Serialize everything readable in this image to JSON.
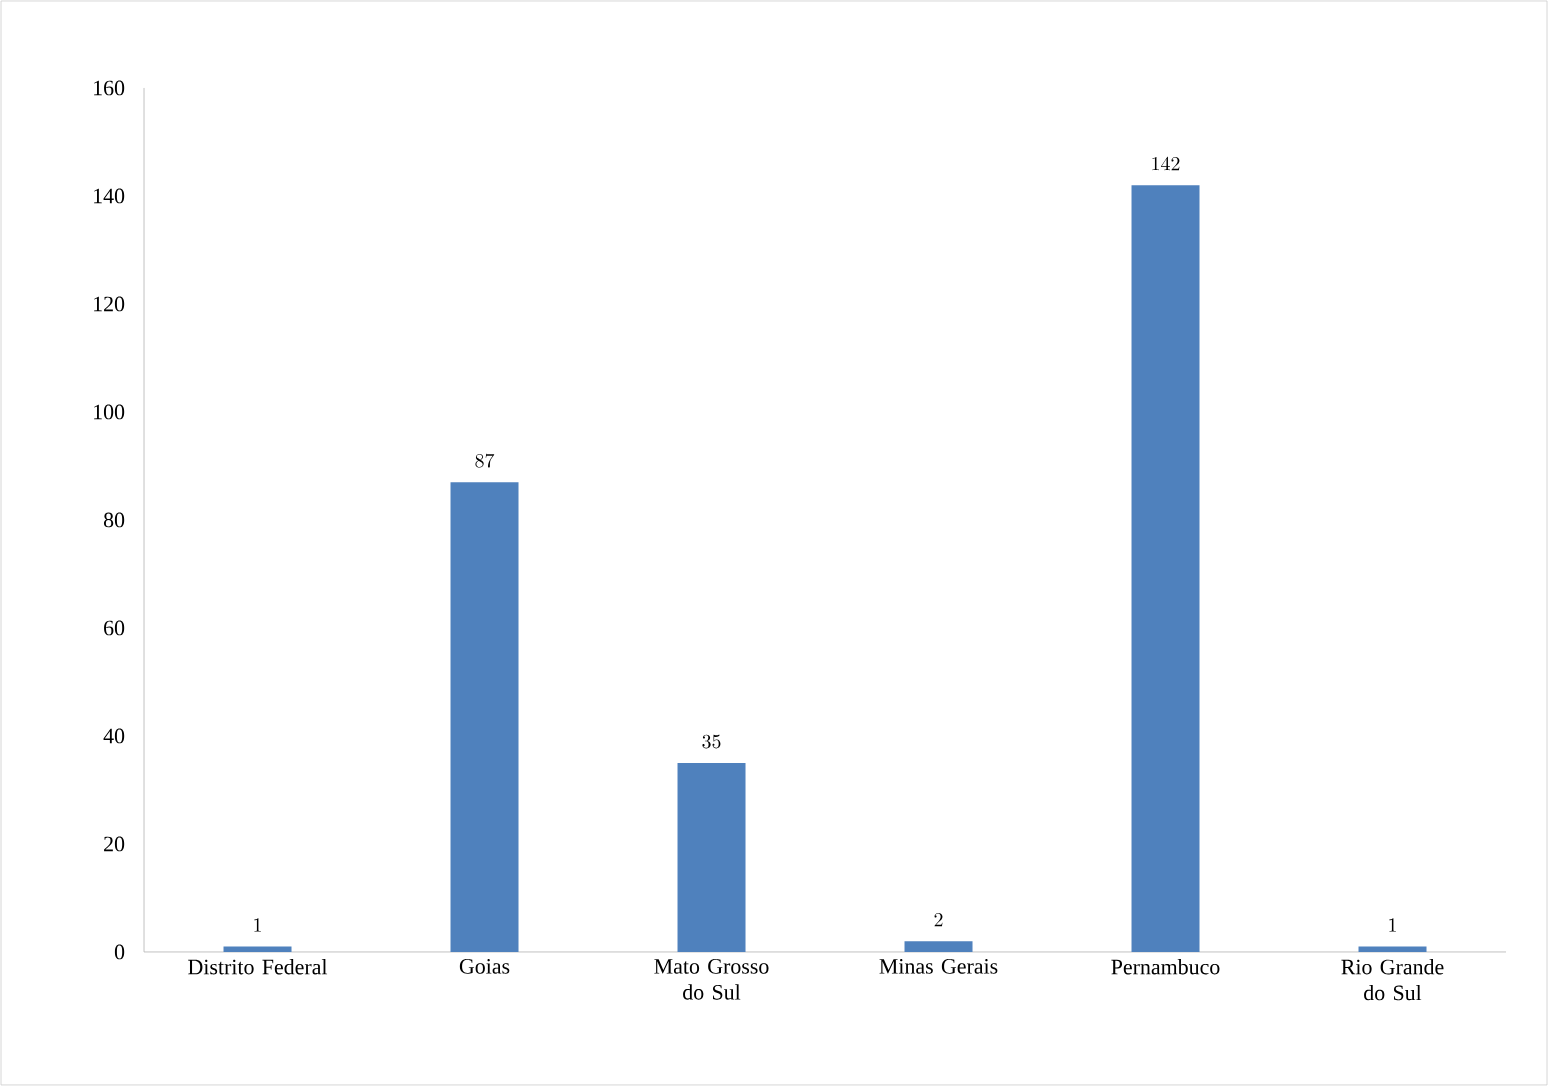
{
  "chart_data": {
    "type": "bar",
    "categories": [
      "Distrito Federal",
      "Goias",
      "Mato Grosso do Sul",
      "Minas Gerais",
      "Pernambuco",
      "Rio Grande do Sul"
    ],
    "values": [
      1,
      87,
      35,
      2,
      142,
      1
    ],
    "color": "#4f81bd",
    "ylim": [
      0,
      160
    ],
    "yticks": [
      0,
      20,
      40,
      60,
      80,
      100,
      120,
      140,
      160
    ],
    "data_labels": true,
    "grid": false
  }
}
